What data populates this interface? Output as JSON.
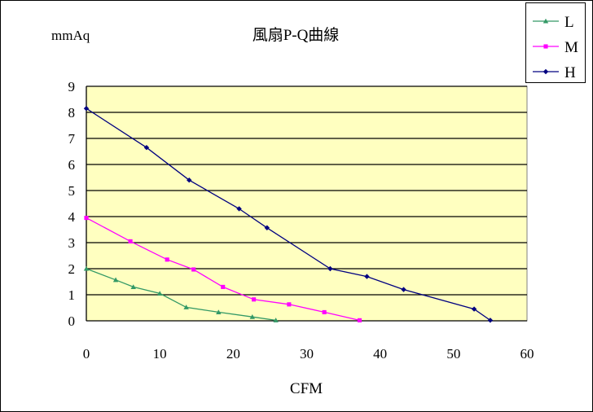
{
  "chart_data": {
    "type": "line",
    "title": "風扇P-Q曲線",
    "ylabel": "mmAq",
    "xlabel": "CFM",
    "xlim": [
      0,
      60
    ],
    "ylim": [
      0,
      9
    ],
    "x_ticks": [
      0,
      10,
      20,
      30,
      40,
      50,
      60
    ],
    "y_ticks": [
      0,
      1,
      2,
      3,
      4,
      5,
      6,
      7,
      8,
      9
    ],
    "grid": "horizontal",
    "legend_position": "top-right",
    "plot_background": "#ffffc0",
    "series": [
      {
        "name": "L",
        "color": "#339966",
        "marker": "triangle",
        "points": [
          [
            0,
            2.0
          ],
          [
            4,
            1.57
          ],
          [
            6.4,
            1.3
          ],
          [
            10,
            1.05
          ],
          [
            13.6,
            0.52
          ],
          [
            18,
            0.33
          ],
          [
            22.6,
            0.15
          ],
          [
            25.8,
            0.02
          ]
        ]
      },
      {
        "name": "M",
        "color": "#ff00ff",
        "marker": "square",
        "points": [
          [
            0,
            3.95
          ],
          [
            6,
            3.05
          ],
          [
            11,
            2.35
          ],
          [
            14.6,
            1.97
          ],
          [
            18.6,
            1.3
          ],
          [
            22.8,
            0.82
          ],
          [
            27.6,
            0.63
          ],
          [
            32.4,
            0.33
          ],
          [
            37.2,
            0.02
          ]
        ]
      },
      {
        "name": "H",
        "color": "#000080",
        "marker": "diamond",
        "points": [
          [
            0,
            8.15
          ],
          [
            8.2,
            6.65
          ],
          [
            14,
            5.4
          ],
          [
            20.8,
            4.3
          ],
          [
            24.6,
            3.57
          ],
          [
            33.2,
            2.0
          ],
          [
            38.2,
            1.7
          ],
          [
            43.2,
            1.2
          ],
          [
            52.8,
            0.45
          ],
          [
            55,
            0.02
          ]
        ]
      }
    ]
  }
}
